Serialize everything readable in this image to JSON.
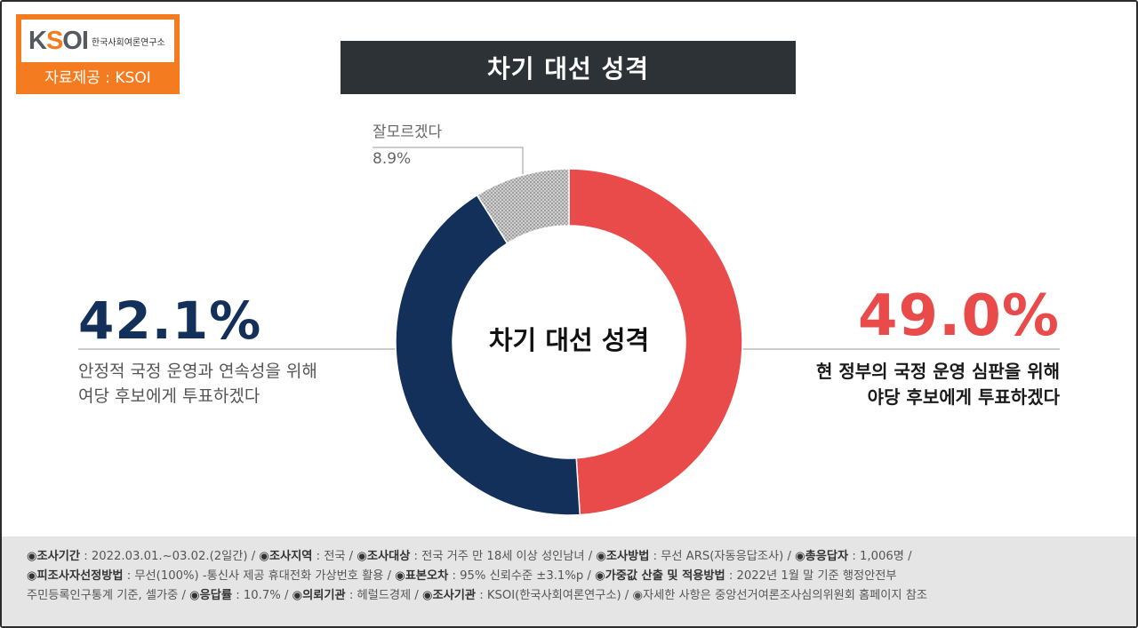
{
  "logo": {
    "mark_left": "K",
    "mark_s": "S",
    "mark_right": "OI",
    "org_name": "한국사회여론연구소",
    "caption": "자료제공 : KSOI"
  },
  "title": "차기 대선 성격",
  "colors": {
    "opposition": "#e94b4b",
    "ruling": "#12305a",
    "unknown": "#b8b8b8",
    "brand": "#f47b20"
  },
  "chart_data": {
    "type": "pie",
    "style": "donut",
    "center_label": "차기 대선 성격",
    "slices": [
      {
        "label": "현 정부의 국정 운영 심판을 위해 야당 후보에게 투표하겠다",
        "value": 49.0,
        "display": "49.0%",
        "color": "#e94b4b"
      },
      {
        "label": "안정적 국정 운영과 연속성을 위해 여당 후보에게 투표하겠다",
        "value": 42.1,
        "display": "42.1%",
        "color": "#12305a"
      },
      {
        "label": "잘모르겠다",
        "value": 8.9,
        "display": "8.9%",
        "color": "#b8b8b8"
      }
    ]
  },
  "left": {
    "pct": "42.1%",
    "line1": "안정적 국정 운영과 연속성을 위해",
    "line2": "여당 후보에게 투표하겠다"
  },
  "right": {
    "pct": "49.0%",
    "line1": "현 정부의 국정 운영 심판을 위해",
    "line2": "야당 후보에게 투표하겠다"
  },
  "unknown": {
    "label": "잘모르겠다",
    "pct": "8.9%"
  },
  "footer": {
    "line1": [
      {
        "k": "◉조사기간",
        "v": " : 2022.03.01.~03.02.(2일간)  / "
      },
      {
        "k": "◉조사지역",
        "v": " : 전국 / "
      },
      {
        "k": "◉조사대상",
        "v": " : 전국 거주 만 18세 이상 성인남녀 / "
      },
      {
        "k": "◉조사방법",
        "v": " : 무선 ARS(자동응답조사) / "
      },
      {
        "k": "◉총응답자",
        "v": " : 1,006명 /"
      }
    ],
    "line2": [
      {
        "k": "◉피조사자선정방법",
        "v": " : 무선(100%) -통신사 제공 휴대전화 가상번호 활용 / "
      },
      {
        "k": "◉표본오차",
        "v": " : 95% 신뢰수준 ±3.1%p / "
      },
      {
        "k": "◉가중값 산출 및 적용방법",
        "v": " : 2022년 1월 말 기준 행정안전부"
      }
    ],
    "line3": [
      {
        "k": "",
        "v": "주민등록인구통계 기준, 셀가중 / "
      },
      {
        "k": "◉응답률",
        "v": " : 10.7% / "
      },
      {
        "k": "◉의뢰기관",
        "v": " : 헤럴드경제 / "
      },
      {
        "k": "◉조사기관",
        "v": " : KSOI(한국사회여론연구소) / ◉자세한 사항은 중앙선거여론조사심의위원회 홈페이지 참조"
      }
    ]
  }
}
